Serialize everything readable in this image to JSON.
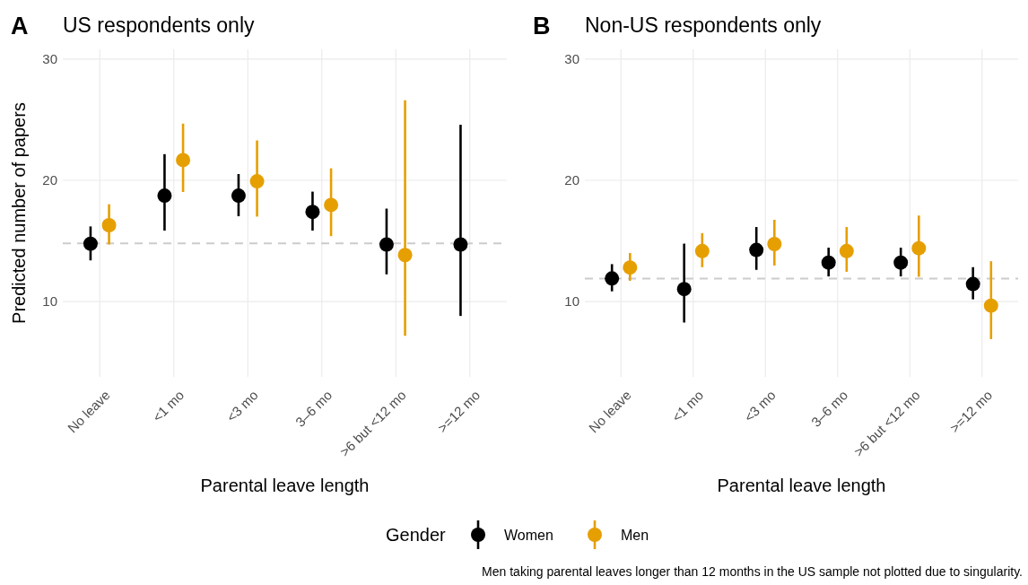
{
  "chart_data": [
    {
      "type": "scatter",
      "title": "US respondents only",
      "xlabel": "Parental leave length",
      "ylabel": "Predicted number of papers",
      "legend_title": "Gender",
      "legend": "bottom",
      "marker": "circle",
      "grid": true,
      "categories": [
        "No leave",
        "<1 mo",
        "<3 mo",
        "3–6 mo",
        ">6 but <12 mo",
        ">=12 mo"
      ],
      "ylim": [
        3.8,
        30.8
      ],
      "yticks": [
        10,
        20,
        30
      ],
      "ref_lines": [
        {
          "axis": "y",
          "value": 14.8,
          "color": "#cccccc",
          "line_style": "dashed"
        }
      ],
      "annotations": [
        "A"
      ],
      "series": [
        {
          "name": "Women",
          "color": "#000000",
          "values": [
            14.77,
            18.74,
            18.74,
            17.4,
            14.71,
            14.71
          ],
          "errors": [
            [
              13.4,
              16.2
            ],
            [
              15.86,
              22.16
            ],
            [
              17.04,
              20.52
            ],
            [
              15.86,
              19.07
            ],
            [
              12.25,
              17.67
            ],
            [
              8.82,
              24.58
            ]
          ]
        },
        {
          "name": "Men",
          "color": "#e69f00",
          "values": [
            16.3,
            21.67,
            19.92,
            17.97,
            13.84,
            null
          ],
          "errors": [
            [
              14.71,
              18.03
            ],
            [
              19.04,
              24.68
            ],
            [
              17.01,
              23.29
            ],
            [
              15.4,
              20.99
            ],
            [
              7.18,
              26.6
            ],
            null
          ]
        }
      ]
    },
    {
      "type": "scatter",
      "title": "Non-US respondents only",
      "xlabel": "Parental leave length",
      "marker": "circle",
      "grid": true,
      "categories": [
        "No leave",
        "<1 mo",
        "<3 mo",
        "3–6 mo",
        ">6 but <12 mo",
        ">=12 mo"
      ],
      "ylim": [
        3.8,
        30.8
      ],
      "yticks": [
        10,
        20,
        30
      ],
      "ref_lines": [
        {
          "axis": "y",
          "value": 11.9,
          "color": "#cccccc",
          "line_style": "dashed"
        }
      ],
      "annotations": [
        "B",
        "Men taking parental leaves longer than 12 months in the US sample not plotted due to singularity."
      ],
      "series": [
        {
          "color": "#000000",
          "values": [
            11.91,
            11.04,
            14.26,
            13.22,
            13.22,
            11.45
          ],
          "errors": [
            [
              10.85,
              13.09
            ],
            [
              8.28,
              14.78
            ],
            [
              12.62,
              16.15
            ],
            [
              12.08,
              14.45
            ],
            [
              12.08,
              14.45
            ],
            [
              10.19,
              12.84
            ]
          ]
        },
        {
          "color": "#e69f00",
          "values": [
            12.81,
            14.17,
            14.75,
            14.17,
            14.4,
            9.67
          ],
          "errors": [
            [
              11.72,
              14.01
            ],
            [
              12.84,
              15.65
            ],
            [
              12.98,
              16.75
            ],
            [
              12.46,
              16.15
            ],
            [
              12.05,
              17.1
            ],
            [
              6.91,
              13.33
            ]
          ]
        }
      ]
    }
  ]
}
